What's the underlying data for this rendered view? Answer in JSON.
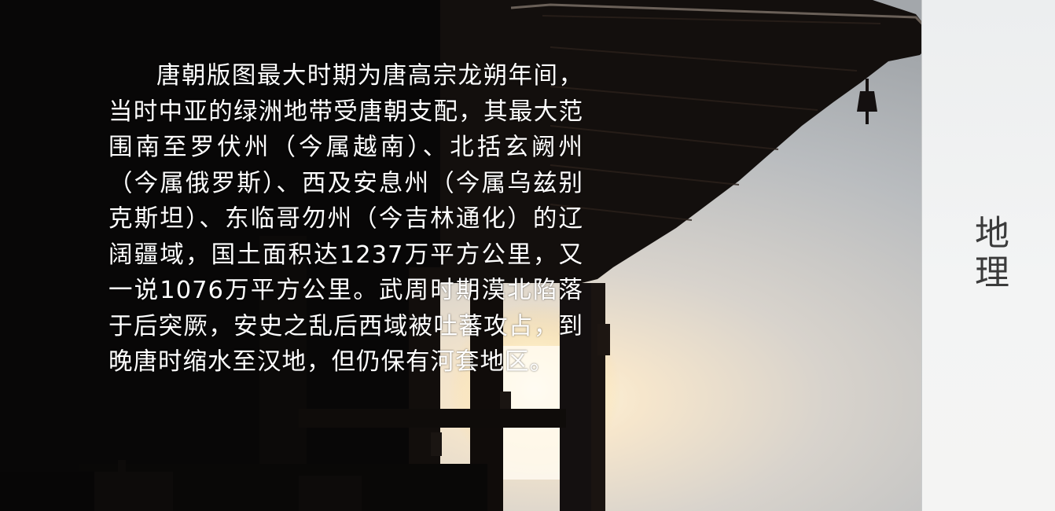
{
  "slide": {
    "section_title": "地理",
    "body": "唐朝版图最大时期为唐高宗龙朔年间，当时中亚的绿洲地带受唐朝支配，其最大范围南至罗伏州（今属越南）、北括玄阙州（今属俄罗斯）、西及安息州（今属乌兹别克斯坦）、东临哥勿州（今吉林通化）的辽阔疆域，国土面积达1237万平方公里，又一说1076万平方公里。武周时期漠北陷落于后突厥，安史之乱后西域被吐蕃攻占，到晚唐时缩水至汉地，但仍保有河套地区。",
    "background_image": "silhouette-pagoda-eaves-sunset",
    "colors": {
      "text": "#ffffff",
      "panel": "#f1f2f2",
      "title": "#3b3b3b"
    }
  }
}
